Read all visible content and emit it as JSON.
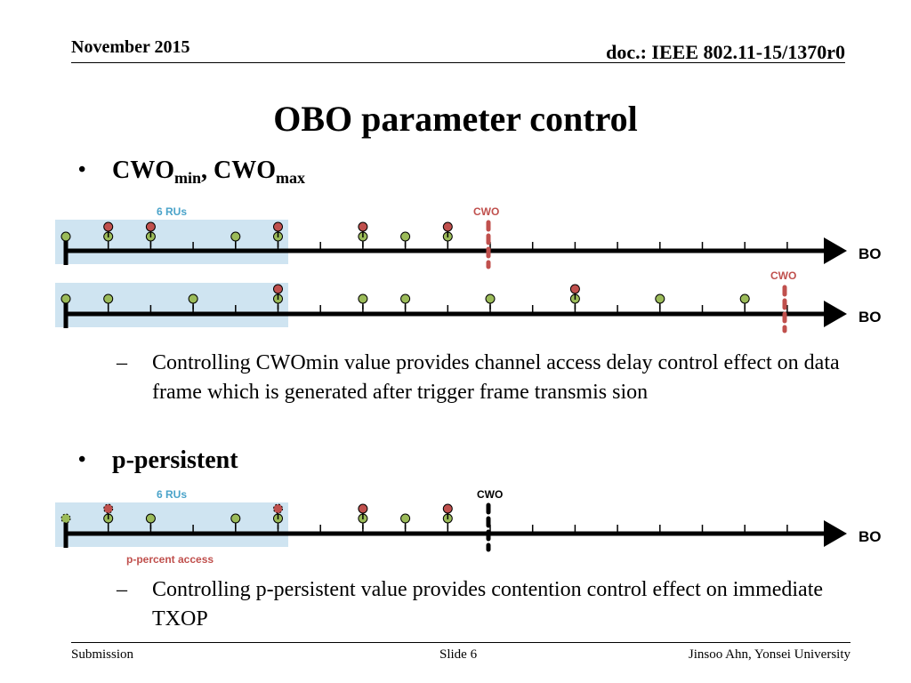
{
  "header": {
    "date": "November 2015",
    "doc": "doc.: IEEE 802.11-15/1370r0"
  },
  "title": "OBO parameter control",
  "bullet1": {
    "parts": [
      "CWO",
      "min",
      ", CWO",
      "max"
    ]
  },
  "sub1": "Controlling CWOmin value provides channel access delay control effect on data frame which is generated after trigger frame transmis sion",
  "bullet2": "p-persistent",
  "sub2": "Controlling p-persistent value provides contention control effect on immediate TXOP",
  "diagram": {
    "ru_label": "6 RUs",
    "cwo_label": "CWO",
    "axis_label": "BO",
    "p_access_label": "p-percent access",
    "colors": {
      "ru_box": "#cfe4f1",
      "ru_text": "#4aa3c9",
      "cwo_red": "#c0504d",
      "green": "#9bbb59",
      "red": "#c0504d"
    }
  },
  "footer": {
    "left": "Submission",
    "center": "Slide 6",
    "right": "Jinsoo Ahn, Yonsei University"
  }
}
